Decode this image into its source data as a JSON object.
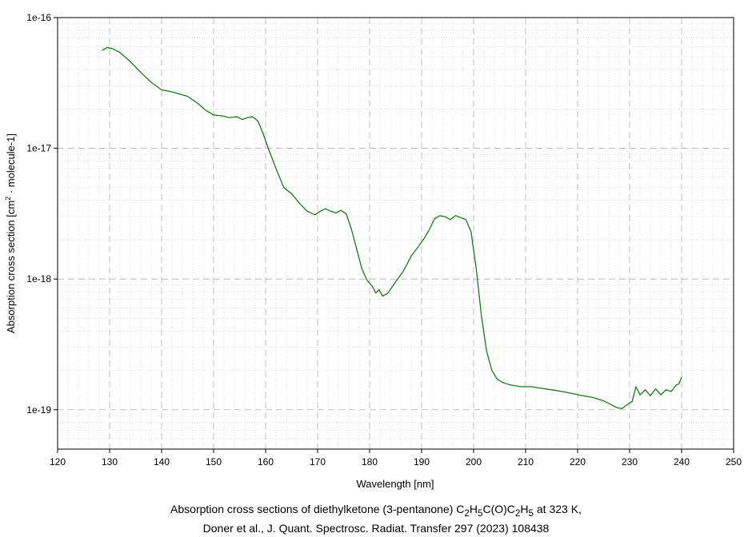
{
  "chart_data": {
    "type": "line",
    "xlabel": "Wavelength [nm]",
    "ylabel_parts": [
      "Absorption cross section [cm",
      "2",
      " · molecule-1]"
    ],
    "xlim": [
      120,
      250
    ],
    "ylim": [
      5e-20,
      1e-16
    ],
    "yscale": "log",
    "grid": true,
    "x_ticks": [
      120,
      130,
      140,
      150,
      160,
      170,
      180,
      190,
      200,
      210,
      220,
      230,
      240,
      250
    ],
    "y_ticks": [
      {
        "value": 1e-16,
        "label": "1e-16"
      },
      {
        "value": 1e-17,
        "label": "1e-17"
      },
      {
        "value": 1e-18,
        "label": "1e-18"
      },
      {
        "value": 1e-19,
        "label": "1e-19"
      }
    ],
    "series": [
      {
        "color": "#1a7a1a",
        "x": [
          128.5,
          129.5,
          130.5,
          132,
          134,
          136,
          138,
          140,
          142,
          143.5,
          145,
          147,
          148.5,
          150,
          151,
          152,
          153,
          154.5,
          155.5,
          156.5,
          157.5,
          158.5,
          159.5,
          160.5,
          162,
          163.5,
          165,
          166.5,
          168,
          169.5,
          170.5,
          171.5,
          172.5,
          173.5,
          174.5,
          175.5,
          176.5,
          177.5,
          178.5,
          179.5,
          180.5,
          181.2,
          181.8,
          182.5,
          183.5,
          185,
          186.5,
          188,
          189.5,
          190.5,
          191.5,
          192.5,
          193.5,
          194.5,
          195.5,
          196.5,
          197.5,
          198.5,
          199.5,
          200.5,
          201.5,
          202.5,
          203.5,
          204.5,
          205.5,
          207,
          209,
          211,
          213,
          215,
          217,
          219,
          221,
          223,
          225,
          226.5,
          227.5,
          228.5,
          229.5,
          230.5,
          231.2,
          232,
          233,
          234,
          235,
          236,
          237,
          238,
          239,
          239.5,
          240
        ],
        "y": [
          5.6e-17,
          5.9e-17,
          5.8e-17,
          5.4e-17,
          4.6e-17,
          3.8e-17,
          3.2e-17,
          2.8e-17,
          2.7e-17,
          2.6e-17,
          2.5e-17,
          2.2e-17,
          1.95e-17,
          1.8e-17,
          1.78e-17,
          1.76e-17,
          1.72e-17,
          1.74e-17,
          1.66e-17,
          1.72e-17,
          1.74e-17,
          1.62e-17,
          1.3e-17,
          1e-17,
          7e-18,
          5e-18,
          4.5e-18,
          3.8e-18,
          3.3e-18,
          3.1e-18,
          3.3e-18,
          3.45e-18,
          3.3e-18,
          3.2e-18,
          3.35e-18,
          3.15e-18,
          2.4e-18,
          1.7e-18,
          1.2e-18,
          9.8e-19,
          8.8e-19,
          7.8e-19,
          8.3e-19,
          7.4e-19,
          7.8e-19,
          9.5e-19,
          1.15e-18,
          1.5e-18,
          1.8e-18,
          2.05e-18,
          2.4e-18,
          2.9e-18,
          3.05e-18,
          3e-18,
          2.85e-18,
          3.05e-18,
          2.95e-18,
          2.85e-18,
          2.3e-18,
          1.2e-18,
          5.2e-19,
          2.8e-19,
          2e-19,
          1.72e-19,
          1.62e-19,
          1.55e-19,
          1.5e-19,
          1.5e-19,
          1.46e-19,
          1.42e-19,
          1.38e-19,
          1.33e-19,
          1.28e-19,
          1.24e-19,
          1.17e-19,
          1.09e-19,
          1.04e-19,
          1.02e-19,
          1.09e-19,
          1.16e-19,
          1.5e-19,
          1.3e-19,
          1.42e-19,
          1.28e-19,
          1.45e-19,
          1.3e-19,
          1.42e-19,
          1.38e-19,
          1.55e-19,
          1.58e-19,
          1.78e-19
        ]
      }
    ]
  },
  "caption": {
    "line1_parts": [
      "Absorption cross sections of diethylketone (3-pentanone) C",
      "2",
      "H",
      "5",
      "C(O)C",
      "2",
      "H",
      "5",
      " at 323 K,"
    ],
    "line2": "Doner et al., J. Quant. Spectrosc. Radiat. Transfer 297 (2023) 108438"
  }
}
